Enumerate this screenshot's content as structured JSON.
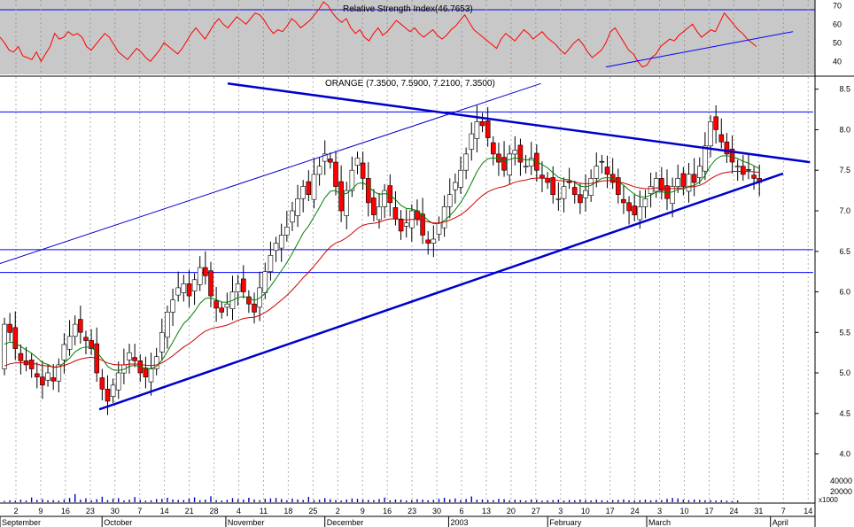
{
  "colors": {
    "rsi_panel_bg": "#c8c8c8",
    "rsi_line": "#ff0000",
    "trendline": "#0000cc",
    "horizontal_line": "#0000ff",
    "candle_up": "#ffffff",
    "candle_down": "#ff0000",
    "ma_short": "#008000",
    "ma_long": "#cc0000",
    "volume_bar": "#0000cc",
    "grid": "#b0b0b0"
  },
  "chart_data": [
    {
      "type": "line",
      "title": "Relative Strength Index(46.7653)",
      "indicator_value": 46.7653,
      "y_ticks": [
        40,
        50,
        60,
        70
      ],
      "ylim": [
        33,
        73
      ],
      "horizontal_lines": [
        70
      ],
      "series": [
        {
          "values": [
            53,
            50,
            46,
            45,
            48,
            43,
            42,
            41,
            45,
            40,
            44,
            48,
            55,
            52,
            53,
            56,
            54,
            55,
            53,
            48,
            46,
            49,
            52,
            55,
            53,
            49,
            45,
            43,
            41,
            44,
            47,
            45,
            42,
            40,
            43,
            46,
            50,
            48,
            46,
            44,
            47,
            51,
            55,
            58,
            55,
            52,
            56,
            60,
            63,
            60,
            58,
            61,
            64,
            62,
            60,
            63,
            66,
            65,
            62,
            58,
            55,
            57,
            56,
            59,
            63,
            61,
            58,
            60,
            62,
            65,
            68,
            72,
            70,
            66,
            63,
            61,
            63,
            58,
            55,
            57,
            53,
            51,
            55,
            58,
            54,
            56,
            59,
            62,
            60,
            58,
            56,
            58,
            55,
            53,
            55,
            57,
            54,
            52,
            54,
            57,
            59,
            62,
            65,
            61,
            57,
            55,
            53,
            51,
            49,
            47,
            52,
            55,
            53,
            51,
            54,
            57,
            55,
            52,
            54,
            56,
            53,
            51,
            49,
            46,
            44,
            47,
            50,
            52,
            49,
            45,
            42,
            44,
            46,
            50,
            56,
            58,
            54,
            50,
            46,
            44,
            40,
            37,
            38,
            42,
            44,
            48,
            50,
            52,
            51,
            54,
            56,
            58,
            60,
            56,
            53,
            55,
            57,
            56,
            61,
            66,
            63,
            60,
            57,
            55,
            52,
            50,
            48
          ]
        }
      ],
      "trendline": {
        "from": [
          0.745,
          37
        ],
        "to": [
          0.98,
          56
        ]
      }
    },
    {
      "type": "candlestick",
      "title": "ORANGE (7.3500, 7.5900, 7.2100, 7.3500)",
      "ohlc_last": {
        "open": 7.35,
        "high": 7.59,
        "low": 7.21,
        "close": 7.35
      },
      "y_ticks": [
        4.0,
        4.5,
        5.0,
        5.5,
        6.0,
        6.5,
        7.0,
        7.5,
        8.0,
        8.5
      ],
      "ylim": [
        3.7,
        8.65
      ],
      "x_tick_labels": [
        "2",
        "9",
        "16",
        "23",
        "30",
        "7",
        "14",
        "21",
        "28",
        "4",
        "11",
        "18",
        "25",
        "2",
        "9",
        "16",
        "23",
        "30",
        "6",
        "13",
        "20",
        "27",
        "3",
        "10",
        "17",
        "24",
        "3",
        "10",
        "17",
        "24",
        "31",
        "7",
        "14"
      ],
      "month_labels": [
        "September",
        "October",
        "November",
        "December",
        "2003",
        "February",
        "March",
        "April"
      ],
      "horizontal_lines": [
        8.22,
        6.52,
        6.24
      ],
      "closes": [
        5.6,
        5.5,
        5.3,
        5.15,
        5.1,
        5.05,
        4.95,
        4.85,
        5.0,
        4.9,
        5.1,
        5.35,
        5.45,
        5.6,
        5.5,
        5.4,
        5.3,
        5.0,
        4.8,
        4.65,
        4.85,
        5.0,
        5.1,
        5.25,
        5.15,
        5.0,
        4.95,
        5.05,
        5.2,
        5.5,
        5.75,
        5.9,
        6.05,
        6.1,
        5.95,
        6.15,
        6.3,
        6.2,
        5.95,
        5.8,
        5.75,
        5.85,
        6.0,
        6.1,
        6.0,
        5.85,
        5.75,
        6.05,
        6.25,
        6.45,
        6.6,
        6.7,
        6.8,
        7.0,
        7.15,
        7.3,
        7.2,
        7.45,
        7.55,
        7.7,
        7.6,
        7.3,
        7.0,
        7.25,
        7.5,
        7.65,
        7.4,
        7.1,
        6.95,
        7.05,
        7.25,
        7.1,
        6.9,
        6.75,
        6.85,
        7.0,
        6.9,
        6.7,
        6.6,
        6.65,
        6.85,
        7.05,
        7.2,
        7.35,
        7.5,
        7.7,
        7.95,
        8.1,
        8.05,
        7.9,
        7.7,
        7.6,
        7.5,
        7.7,
        7.75,
        7.6,
        7.55,
        7.65,
        7.5,
        7.4,
        7.35,
        7.2,
        7.15,
        7.3,
        7.35,
        7.2,
        7.1,
        7.25,
        7.4,
        7.55,
        7.6,
        7.45,
        7.35,
        7.2,
        7.1,
        7.0,
        6.95,
        7.05,
        7.15,
        7.3,
        7.4,
        7.25,
        7.15,
        7.3,
        7.4,
        7.3,
        7.45,
        7.35,
        7.55,
        7.8,
        8.1,
        8.0,
        7.85,
        7.7,
        7.6,
        7.55,
        7.45,
        7.5,
        7.4,
        7.35
      ],
      "series": [
        {
          "name": "",
          "role": "ma_short",
          "start_close": 5.3,
          "span": 10
        },
        {
          "name": "",
          "role": "ma_long",
          "start_close": 5.05,
          "span": 30
        }
      ],
      "trendlines": [
        {
          "from": [
            0.122,
            4.55
          ],
          "to": [
            0.963,
            7.46
          ]
        },
        {
          "from": [
            0.28,
            8.57
          ],
          "to": [
            0.996,
            7.6
          ]
        },
        {
          "from": [
            0.0,
            6.35
          ],
          "to": [
            0.665,
            8.57
          ]
        }
      ]
    },
    {
      "type": "bar",
      "title": "",
      "y_ticks": [
        20000,
        40000
      ],
      "unit_label": "x1000",
      "values": [
        600,
        900,
        700,
        1200,
        800,
        2200,
        1100,
        1500,
        900,
        1000,
        700,
        1300,
        2000,
        3800,
        1200,
        1800,
        900,
        1400,
        2600,
        1000,
        1700,
        1900,
        800,
        1200,
        2400,
        1000,
        700,
        900,
        1500,
        1600,
        2100,
        1300,
        1100,
        1000,
        1700,
        2300,
        900,
        1200,
        2800,
        1000,
        800,
        1100,
        1900,
        1400,
        1200,
        2100,
        1300,
        1000,
        1600,
        1800,
        2000,
        1500,
        900,
        1700,
        1300,
        1100,
        2500,
        1000,
        1200,
        1900,
        1400,
        1000,
        800,
        1300,
        1800,
        1600,
        1200,
        1100,
        1000,
        1500,
        2200,
        900,
        1300,
        1200,
        800,
        1000,
        1400,
        1200,
        900,
        1100,
        1600,
        2100,
        1300,
        1800,
        1000,
        1500,
        2700,
        1200,
        1300,
        1100,
        1000,
        1600,
        1400,
        900,
        1200,
        1000,
        800,
        1300,
        1100,
        700,
        900,
        1000,
        1200,
        800,
        1100,
        900,
        1300,
        1000,
        800,
        1200,
        900,
        700,
        1000,
        1100,
        1300,
        900,
        800,
        1000,
        1200,
        900,
        1100,
        1000,
        1600,
        2000,
        1800,
        1200,
        1000,
        1300,
        1100,
        900,
        1000,
        800,
        900,
        700,
        600,
        800
      ]
    }
  ]
}
